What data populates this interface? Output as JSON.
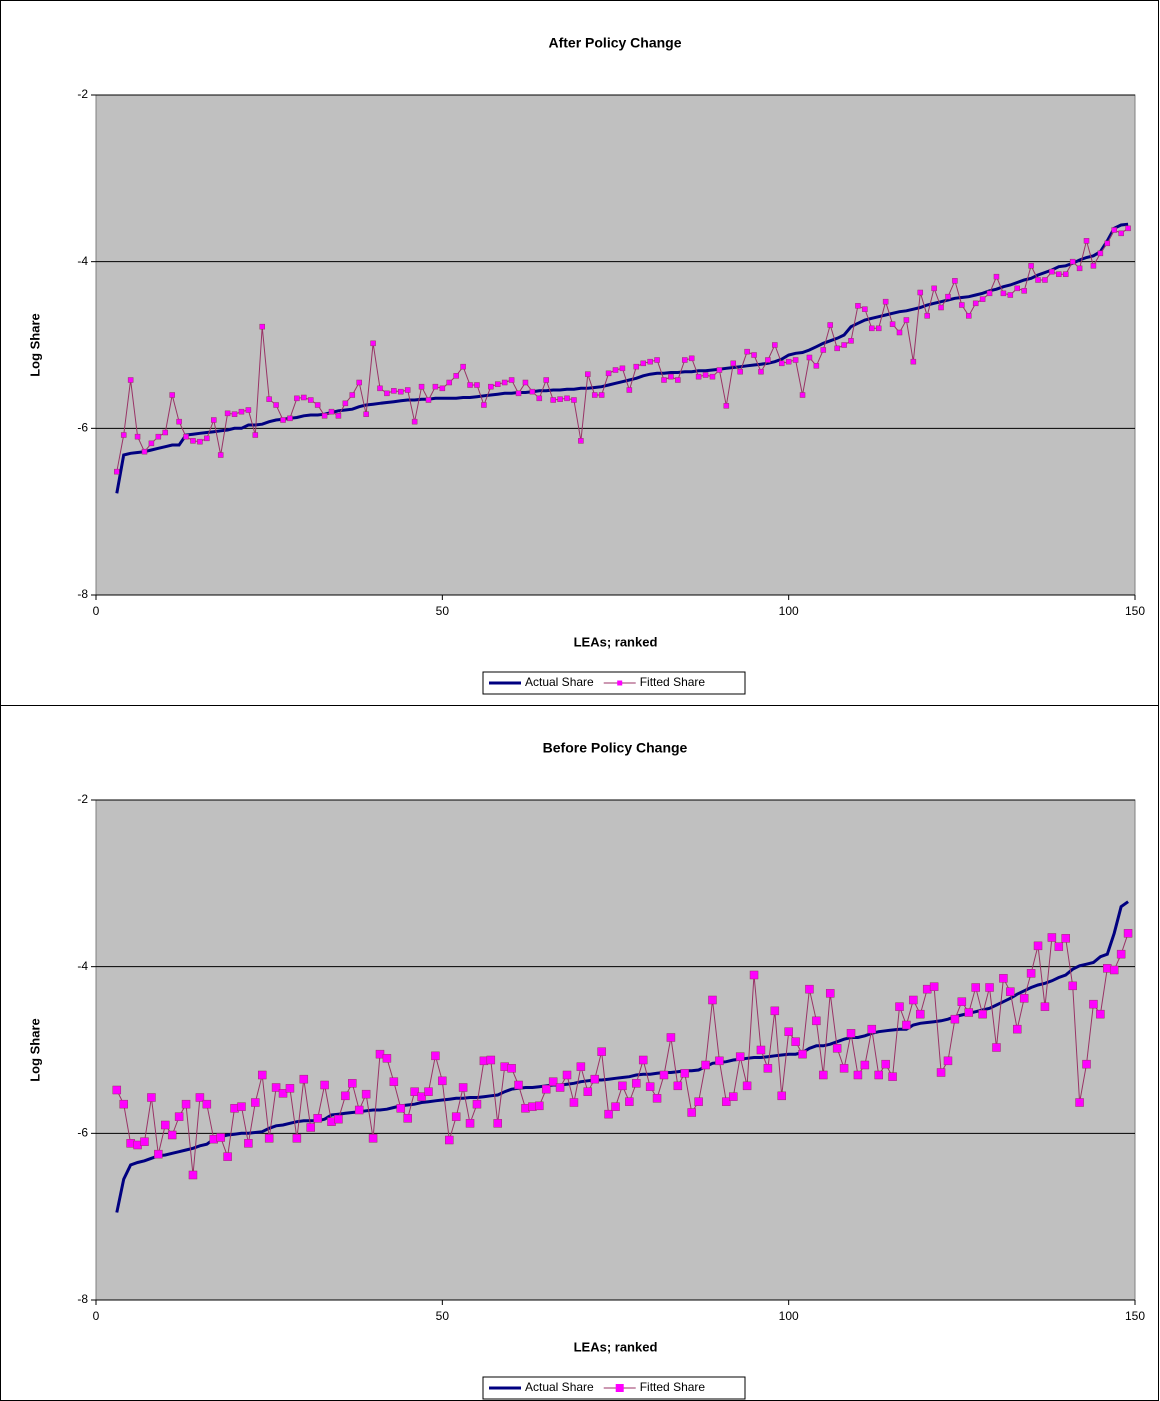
{
  "chart_data": [
    {
      "type": "line",
      "title": "After Policy Change",
      "x_label": "LEAs; ranked",
      "y_label": "Log Share",
      "xlim": [
        0,
        150
      ],
      "xticks": [
        0,
        50,
        100,
        150
      ],
      "ylim": [
        -8,
        -2
      ],
      "yticks": [
        -8,
        -6,
        -4,
        -2
      ],
      "grid": true,
      "legend": "bottom",
      "x": [
        3,
        4,
        5,
        6,
        7,
        8,
        9,
        10,
        11,
        12,
        13,
        14,
        15,
        16,
        17,
        18,
        19,
        20,
        21,
        22,
        23,
        24,
        25,
        26,
        27,
        28,
        29,
        30,
        31,
        32,
        33,
        34,
        35,
        36,
        37,
        38,
        39,
        40,
        41,
        42,
        43,
        44,
        45,
        46,
        47,
        48,
        49,
        50,
        51,
        52,
        53,
        54,
        55,
        56,
        57,
        58,
        59,
        60,
        61,
        62,
        63,
        64,
        65,
        66,
        67,
        68,
        69,
        70,
        71,
        72,
        73,
        74,
        75,
        76,
        77,
        78,
        79,
        80,
        81,
        82,
        83,
        84,
        85,
        86,
        87,
        88,
        89,
        90,
        91,
        92,
        93,
        94,
        95,
        96,
        97,
        98,
        99,
        100,
        101,
        102,
        103,
        104,
        105,
        106,
        107,
        108,
        109,
        110,
        111,
        112,
        113,
        114,
        115,
        116,
        117,
        118,
        119,
        120,
        121,
        122,
        123,
        124,
        125,
        126,
        127,
        128,
        129,
        130,
        131,
        132,
        133,
        134,
        135,
        136,
        137,
        138,
        139,
        140,
        141,
        142,
        143,
        144,
        145,
        146,
        147,
        148,
        149
      ],
      "series": [
        {
          "name": "Actual Share",
          "color": "#000080",
          "marker": false,
          "values": [
            -6.78,
            -6.32,
            -6.3,
            -6.29,
            -6.28,
            -6.26,
            -6.24,
            -6.22,
            -6.2,
            -6.2,
            -6.08,
            -6.07,
            -6.06,
            -6.05,
            -6.04,
            -6.03,
            -6.02,
            -6.0,
            -6.0,
            -5.96,
            -5.96,
            -5.95,
            -5.92,
            -5.9,
            -5.89,
            -5.88,
            -5.87,
            -5.85,
            -5.84,
            -5.84,
            -5.83,
            -5.81,
            -5.79,
            -5.78,
            -5.77,
            -5.74,
            -5.72,
            -5.71,
            -5.7,
            -5.69,
            -5.68,
            -5.67,
            -5.66,
            -5.66,
            -5.65,
            -5.65,
            -5.64,
            -5.64,
            -5.64,
            -5.64,
            -5.63,
            -5.63,
            -5.62,
            -5.61,
            -5.6,
            -5.59,
            -5.58,
            -5.58,
            -5.57,
            -5.57,
            -5.56,
            -5.55,
            -5.55,
            -5.54,
            -5.54,
            -5.53,
            -5.53,
            -5.52,
            -5.52,
            -5.51,
            -5.5,
            -5.48,
            -5.46,
            -5.44,
            -5.42,
            -5.4,
            -5.37,
            -5.35,
            -5.34,
            -5.34,
            -5.33,
            -5.33,
            -5.32,
            -5.32,
            -5.31,
            -5.31,
            -5.3,
            -5.29,
            -5.28,
            -5.27,
            -5.26,
            -5.25,
            -5.24,
            -5.23,
            -5.22,
            -5.2,
            -5.17,
            -5.12,
            -5.1,
            -5.09,
            -5.06,
            -5.02,
            -4.98,
            -4.95,
            -4.92,
            -4.88,
            -4.78,
            -4.74,
            -4.7,
            -4.68,
            -4.66,
            -4.64,
            -4.62,
            -4.6,
            -4.59,
            -4.57,
            -4.55,
            -4.52,
            -4.5,
            -4.48,
            -4.46,
            -4.44,
            -4.43,
            -4.42,
            -4.4,
            -4.38,
            -4.35,
            -4.33,
            -4.3,
            -4.28,
            -4.25,
            -4.22,
            -4.2,
            -4.16,
            -4.13,
            -4.1,
            -4.06,
            -4.05,
            -4.02,
            -3.98,
            -3.95,
            -3.93,
            -3.88,
            -3.75,
            -3.6,
            -3.56,
            -3.55
          ]
        },
        {
          "name": "Fitted Share",
          "color": "#ff00ff",
          "line_color": "#993366",
          "marker": true,
          "values": [
            -6.52,
            -6.08,
            -5.42,
            -6.1,
            -6.28,
            -6.18,
            -6.1,
            -6.05,
            -5.6,
            -5.92,
            -6.1,
            -6.15,
            -6.16,
            -6.12,
            -5.9,
            -6.32,
            -5.82,
            -5.83,
            -5.8,
            -5.78,
            -6.08,
            -4.78,
            -5.65,
            -5.72,
            -5.9,
            -5.88,
            -5.64,
            -5.63,
            -5.66,
            -5.72,
            -5.85,
            -5.8,
            -5.85,
            -5.7,
            -5.6,
            -5.45,
            -5.83,
            -4.98,
            -5.52,
            -5.58,
            -5.55,
            -5.56,
            -5.54,
            -5.92,
            -5.5,
            -5.66,
            -5.5,
            -5.52,
            -5.45,
            -5.37,
            -5.26,
            -5.48,
            -5.48,
            -5.72,
            -5.5,
            -5.47,
            -5.45,
            -5.42,
            -5.58,
            -5.45,
            -5.56,
            -5.64,
            -5.42,
            -5.66,
            -5.65,
            -5.64,
            -5.66,
            -6.15,
            -5.35,
            -5.6,
            -5.6,
            -5.34,
            -5.3,
            -5.28,
            -5.54,
            -5.26,
            -5.22,
            -5.2,
            -5.18,
            -5.42,
            -5.38,
            -5.42,
            -5.18,
            -5.16,
            -5.38,
            -5.36,
            -5.38,
            -5.3,
            -5.73,
            -5.22,
            -5.32,
            -5.08,
            -5.12,
            -5.32,
            -5.18,
            -5.0,
            -5.22,
            -5.2,
            -5.18,
            -5.6,
            -5.15,
            -5.25,
            -5.06,
            -4.76,
            -5.04,
            -5.0,
            -4.95,
            -4.53,
            -4.57,
            -4.8,
            -4.8,
            -4.48,
            -4.75,
            -4.85,
            -4.7,
            -5.2,
            -4.37,
            -4.65,
            -4.32,
            -4.55,
            -4.42,
            -4.23,
            -4.52,
            -4.65,
            -4.5,
            -4.45,
            -4.38,
            -4.18,
            -4.38,
            -4.4,
            -4.32,
            -4.35,
            -4.05,
            -4.22,
            -4.22,
            -4.12,
            -4.15,
            -4.15,
            -4.0,
            -4.08,
            -3.75,
            -4.05,
            -3.9,
            -3.78,
            -3.62,
            -3.66,
            -3.6
          ]
        }
      ]
    },
    {
      "type": "line",
      "title": "Before Policy Change",
      "x_label": "LEAs; ranked",
      "y_label": "Log Share",
      "xlim": [
        0,
        150
      ],
      "xticks": [
        0,
        50,
        100,
        150
      ],
      "ylim": [
        -8,
        -2
      ],
      "yticks": [
        -8,
        -6,
        -4,
        -2
      ],
      "grid": true,
      "legend": "bottom",
      "x": [
        3,
        4,
        5,
        6,
        7,
        8,
        9,
        10,
        11,
        12,
        13,
        14,
        15,
        16,
        17,
        18,
        19,
        20,
        21,
        22,
        23,
        24,
        25,
        26,
        27,
        28,
        29,
        30,
        31,
        32,
        33,
        34,
        35,
        36,
        37,
        38,
        39,
        40,
        41,
        42,
        43,
        44,
        45,
        46,
        47,
        48,
        49,
        50,
        51,
        52,
        53,
        54,
        55,
        56,
        57,
        58,
        59,
        60,
        61,
        62,
        63,
        64,
        65,
        66,
        67,
        68,
        69,
        70,
        71,
        72,
        73,
        74,
        75,
        76,
        77,
        78,
        79,
        80,
        81,
        82,
        83,
        84,
        85,
        86,
        87,
        88,
        89,
        90,
        91,
        92,
        93,
        94,
        95,
        96,
        97,
        98,
        99,
        100,
        101,
        102,
        103,
        104,
        105,
        106,
        107,
        108,
        109,
        110,
        111,
        112,
        113,
        114,
        115,
        116,
        117,
        118,
        119,
        120,
        121,
        122,
        123,
        124,
        125,
        126,
        127,
        128,
        129,
        130,
        131,
        132,
        133,
        134,
        135,
        136,
        137,
        138,
        139,
        140,
        141,
        142,
        143,
        144,
        145,
        146,
        147,
        148,
        149
      ],
      "series": [
        {
          "name": "Actual Share",
          "color": "#000080",
          "marker": false,
          "values": [
            -6.95,
            -6.55,
            -6.38,
            -6.35,
            -6.33,
            -6.3,
            -6.27,
            -6.26,
            -6.24,
            -6.22,
            -6.2,
            -6.18,
            -6.15,
            -6.13,
            -6.07,
            -6.04,
            -6.02,
            -6.01,
            -6.0,
            -6.0,
            -5.99,
            -5.98,
            -5.94,
            -5.91,
            -5.9,
            -5.88,
            -5.86,
            -5.85,
            -5.85,
            -5.85,
            -5.83,
            -5.78,
            -5.77,
            -5.76,
            -5.75,
            -5.74,
            -5.73,
            -5.72,
            -5.72,
            -5.71,
            -5.69,
            -5.67,
            -5.66,
            -5.65,
            -5.63,
            -5.62,
            -5.61,
            -5.6,
            -5.59,
            -5.58,
            -5.58,
            -5.57,
            -5.57,
            -5.56,
            -5.55,
            -5.54,
            -5.5,
            -5.47,
            -5.46,
            -5.45,
            -5.45,
            -5.44,
            -5.43,
            -5.42,
            -5.42,
            -5.41,
            -5.4,
            -5.38,
            -5.37,
            -5.36,
            -5.36,
            -5.35,
            -5.34,
            -5.33,
            -5.32,
            -5.3,
            -5.29,
            -5.29,
            -5.28,
            -5.27,
            -5.27,
            -5.26,
            -5.25,
            -5.25,
            -5.24,
            -5.2,
            -5.16,
            -5.15,
            -5.14,
            -5.12,
            -5.11,
            -5.1,
            -5.09,
            -5.09,
            -5.08,
            -5.07,
            -5.06,
            -5.05,
            -5.05,
            -5.03,
            -4.98,
            -4.95,
            -4.95,
            -4.93,
            -4.9,
            -4.87,
            -4.85,
            -4.85,
            -4.83,
            -4.8,
            -4.78,
            -4.77,
            -4.76,
            -4.75,
            -4.75,
            -4.7,
            -4.68,
            -4.67,
            -4.66,
            -4.65,
            -4.63,
            -4.6,
            -4.58,
            -4.56,
            -4.54,
            -4.52,
            -4.5,
            -4.46,
            -4.42,
            -4.38,
            -4.33,
            -4.29,
            -4.25,
            -4.22,
            -4.2,
            -4.17,
            -4.13,
            -4.1,
            -4.03,
            -3.99,
            -3.97,
            -3.95,
            -3.88,
            -3.85,
            -3.6,
            -3.28,
            -3.22
          ]
        },
        {
          "name": "Fitted Share",
          "color": "#ff00ff",
          "line_color": "#993366",
          "marker": true,
          "values": [
            -5.48,
            -5.65,
            -6.12,
            -6.14,
            -6.1,
            -5.57,
            -6.25,
            -5.9,
            -6.02,
            -5.8,
            -5.65,
            -6.5,
            -5.57,
            -5.65,
            -6.07,
            -6.05,
            -6.28,
            -5.7,
            -5.68,
            -6.12,
            -5.63,
            -5.3,
            -6.06,
            -5.45,
            -5.52,
            -5.46,
            -6.06,
            -5.35,
            -5.93,
            -5.82,
            -5.42,
            -5.86,
            -5.83,
            -5.55,
            -5.4,
            -5.72,
            -5.53,
            -6.06,
            -5.05,
            -5.1,
            -5.38,
            -5.7,
            -5.82,
            -5.5,
            -5.56,
            -5.5,
            -5.07,
            -5.37,
            -6.08,
            -5.8,
            -5.45,
            -5.88,
            -5.65,
            -5.13,
            -5.12,
            -5.88,
            -5.2,
            -5.22,
            -5.42,
            -5.7,
            -5.68,
            -5.67,
            -5.47,
            -5.38,
            -5.45,
            -5.3,
            -5.63,
            -5.2,
            -5.5,
            -5.35,
            -5.02,
            -5.77,
            -5.68,
            -5.43,
            -5.62,
            -5.4,
            -5.12,
            -5.44,
            -5.58,
            -5.3,
            -4.85,
            -5.43,
            -5.28,
            -5.75,
            -5.62,
            -5.18,
            -4.4,
            -5.13,
            -5.62,
            -5.56,
            -5.08,
            -5.43,
            -4.1,
            -5.0,
            -5.22,
            -4.53,
            -5.55,
            -4.78,
            -4.9,
            -5.05,
            -4.27,
            -4.65,
            -5.3,
            -4.32,
            -4.98,
            -5.22,
            -4.8,
            -5.3,
            -5.18,
            -4.75,
            -5.3,
            -5.17,
            -5.32,
            -4.48,
            -4.7,
            -4.4,
            -4.57,
            -4.27,
            -4.24,
            -5.27,
            -5.13,
            -4.63,
            -4.42,
            -4.55,
            -4.25,
            -4.57,
            -4.25,
            -4.97,
            -4.14,
            -4.3,
            -4.75,
            -4.38,
            -4.08,
            -3.75,
            -4.48,
            -3.65,
            -3.76,
            -3.66,
            -4.23,
            -5.63,
            -5.17,
            -4.45,
            -4.57,
            -4.02,
            -4.04,
            -3.85,
            -3.6
          ]
        }
      ]
    }
  ]
}
